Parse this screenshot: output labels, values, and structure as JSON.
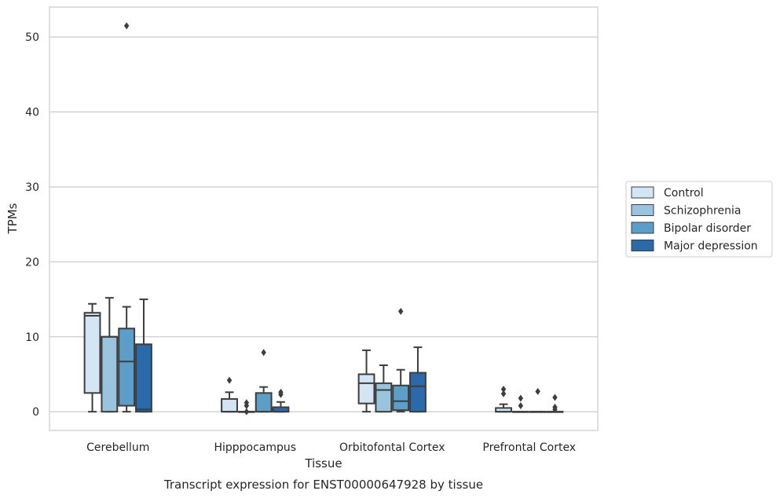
{
  "chart_data": {
    "type": "boxplot",
    "title": "Transcript expression for ENST00000647928 by tissue",
    "xlabel": "Tissue",
    "ylabel": "TPMs",
    "ylim": [
      -2.5,
      54
    ],
    "yticks": [
      0,
      10,
      20,
      30,
      40,
      50
    ],
    "grid": "horizontal",
    "legend_position": "right",
    "categories": [
      "Cerebellum",
      "Hipppocampus",
      "Orbitofontal Cortex",
      "Prefrontal Cortex"
    ],
    "series": [
      {
        "name": "Control",
        "color": "#d3e4f3",
        "boxes": [
          {
            "whislo": 0.0,
            "q1": 2.5,
            "med": 12.8,
            "q3": 13.2,
            "whishi": 14.4,
            "fliers": []
          },
          {
            "whislo": 0.0,
            "q1": 0.0,
            "med": 0.0,
            "q3": 1.7,
            "whishi": 2.6,
            "fliers": [
              4.2
            ]
          },
          {
            "whislo": 0.0,
            "q1": 1.1,
            "med": 3.8,
            "q3": 5.0,
            "whishi": 8.2,
            "fliers": []
          },
          {
            "whislo": 0.0,
            "q1": 0.0,
            "med": 0.0,
            "q3": 0.5,
            "whishi": 1.0,
            "fliers": [
              2.4,
              3.0
            ]
          }
        ]
      },
      {
        "name": "Schizophrenia",
        "color": "#9ac3de",
        "boxes": [
          {
            "whislo": 0.0,
            "q1": 0.0,
            "med": 10.0,
            "q3": 10.0,
            "whishi": 15.2,
            "fliers": []
          },
          {
            "whislo": 0.0,
            "q1": 0.0,
            "med": 0.0,
            "q3": 0.0,
            "whishi": 0.0,
            "fliers": [
              0.0,
              0.8,
              1.2
            ]
          },
          {
            "whislo": 0.0,
            "q1": 0.0,
            "med": 2.9,
            "q3": 3.8,
            "whishi": 6.2,
            "fliers": []
          },
          {
            "whislo": 0.0,
            "q1": 0.0,
            "med": 0.0,
            "q3": 0.0,
            "whishi": 0.0,
            "fliers": [
              0.8,
              1.8
            ]
          }
        ]
      },
      {
        "name": "Bipolar disorder",
        "color": "#5d9ec9",
        "boxes": [
          {
            "whislo": 0.0,
            "q1": 0.8,
            "med": 6.7,
            "q3": 11.1,
            "whishi": 14.0,
            "fliers": [
              51.5
            ]
          },
          {
            "whislo": 0.0,
            "q1": 0.0,
            "med": 0.0,
            "q3": 2.5,
            "whishi": 3.3,
            "fliers": [
              7.9
            ]
          },
          {
            "whislo": 0.0,
            "q1": 0.2,
            "med": 1.4,
            "q3": 3.5,
            "whishi": 5.6,
            "fliers": [
              13.4
            ]
          },
          {
            "whislo": 0.0,
            "q1": 0.0,
            "med": 0.0,
            "q3": 0.0,
            "whishi": 0.0,
            "fliers": [
              2.7
            ]
          }
        ]
      },
      {
        "name": "Major depression",
        "color": "#2a6aab",
        "boxes": [
          {
            "whislo": 0.0,
            "q1": 0.0,
            "med": 0.3,
            "q3": 9.0,
            "whishi": 15.0,
            "fliers": []
          },
          {
            "whislo": 0.0,
            "q1": 0.0,
            "med": 0.0,
            "q3": 0.6,
            "whishi": 1.3,
            "fliers": [
              2.3,
              2.6
            ]
          },
          {
            "whislo": 0.0,
            "q1": 0.0,
            "med": 3.4,
            "q3": 5.2,
            "whishi": 8.6,
            "fliers": []
          },
          {
            "whislo": 0.0,
            "q1": 0.0,
            "med": 0.0,
            "q3": 0.0,
            "whishi": 0.0,
            "fliers": [
              0.3,
              0.6,
              1.9
            ]
          }
        ]
      }
    ]
  }
}
